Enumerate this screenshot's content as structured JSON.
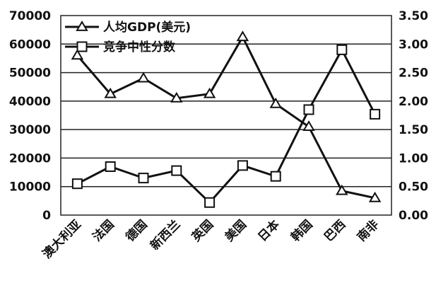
{
  "chart_data": {
    "type": "line",
    "categories": [
      "澳大利亚",
      "法国",
      "德国",
      "新西兰",
      "英国",
      "美国",
      "日本",
      "韩国",
      "巴西",
      "南非"
    ],
    "series": [
      {
        "name": "人均GDP(美元)",
        "axis": "left",
        "marker": "triangle",
        "values": [
          56000,
          42500,
          48000,
          41000,
          42500,
          62500,
          39000,
          31000,
          8500,
          6000
        ]
      },
      {
        "name": "竞争中性分数",
        "axis": "right",
        "marker": "square",
        "values": [
          0.55,
          0.85,
          0.65,
          0.78,
          0.22,
          0.87,
          0.68,
          1.85,
          2.9,
          1.77
        ]
      }
    ],
    "y_left": {
      "ylim": [
        0,
        70000
      ],
      "ticks": [
        "0",
        "10000",
        "20000",
        "30000",
        "40000",
        "50000",
        "60000",
        "70000"
      ]
    },
    "y_right": {
      "ylim": [
        0,
        3.5
      ],
      "ticks": [
        "0.00",
        "0.50",
        "1.00",
        "1.50",
        "2.00",
        "2.50",
        "3.00",
        "3.50"
      ]
    },
    "grid": true,
    "legend": "top-left"
  },
  "colors": {
    "line": "#111111",
    "grid": "#222222",
    "background": "#ffffff"
  }
}
